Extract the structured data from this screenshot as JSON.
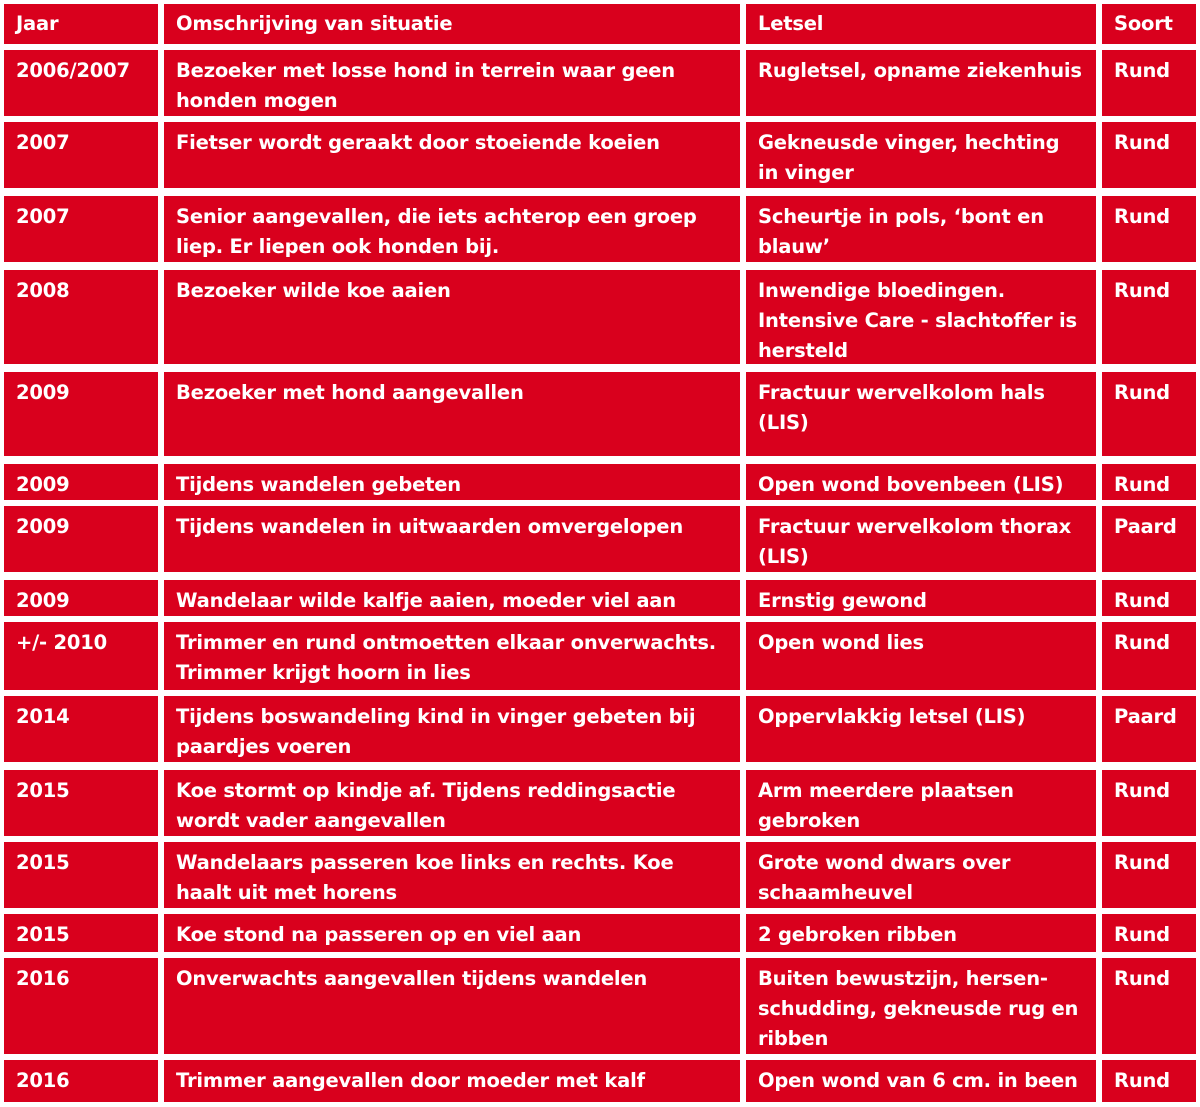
{
  "table": {
    "headers": [
      "Jaar",
      "Omschrijving van situatie",
      "Letsel",
      "Soort"
    ],
    "rows": [
      [
        "2006/2007",
        "Bezoeker met losse hond in terrein waar geen\nhonden mogen",
        "Rugletsel, opname ziekenhuis",
        "Rund"
      ],
      [
        "2007",
        "Fietser wordt geraakt door stoeiende koeien",
        "Gekneusde vinger, hechting\nin vinger",
        "Rund"
      ],
      [
        "2007",
        "Senior aangevallen, die iets achterop een groep\nliep. Er liepen ook honden bij.",
        "Scheurtje in pols, ‘bont en\nblauw’",
        "Rund"
      ],
      [
        "2008",
        "Bezoeker wilde koe aaien",
        "Inwendige bloedingen.\nIntensive Care - slachtoffer is\nhersteld",
        "Rund"
      ],
      [
        "2009",
        "Bezoeker met hond aangevallen",
        "Fractuur wervelkolom hals\n(LIS)",
        "Rund"
      ],
      [
        "2009",
        "Tijdens wandelen gebeten",
        "Open wond bovenbeen (LIS)",
        "Rund"
      ],
      [
        "2009",
        "Tijdens wandelen in uitwaarden omvergelopen",
        "Fractuur wervelkolom thorax\n(LIS)",
        "Paard"
      ],
      [
        "2009",
        "Wandelaar wilde kalfje aaien, moeder viel aan",
        "Ernstig gewond",
        "Rund"
      ],
      [
        "+/- 2010",
        "Trimmer en rund ontmoetten elkaar onverwachts.\nTrimmer krijgt hoorn in lies",
        "Open wond lies",
        "Rund"
      ],
      [
        "2014",
        "Tijdens boswandeling kind in vinger gebeten bij\npaardjes voeren",
        "Oppervlakkig letsel (LIS)",
        "Paard"
      ],
      [
        "2015",
        "Koe stormt op kindje af. Tijdens reddingsactie\nwordt vader aangevallen",
        "Arm meerdere plaatsen\ngebroken",
        "Rund"
      ],
      [
        "2015",
        "Wandelaars passeren koe links en rechts. Koe\nhaalt uit met horens",
        "Grote wond dwars over\nschaamheuvel",
        "Rund"
      ],
      [
        "2015",
        "Koe stond na passeren op en viel aan",
        "2 gebroken ribben",
        "Rund"
      ],
      [
        "2016",
        "Onverwachts aangevallen tijdens wandelen",
        "Buiten bewustzijn, hersen-\nschudding, gekneusde rug en\nribben",
        "Rund"
      ],
      [
        "2016",
        "Trimmer aangevallen door moeder met kalf",
        "Open wond van 6 cm. in been",
        "Rund"
      ]
    ],
    "color": "#d9001d"
  }
}
